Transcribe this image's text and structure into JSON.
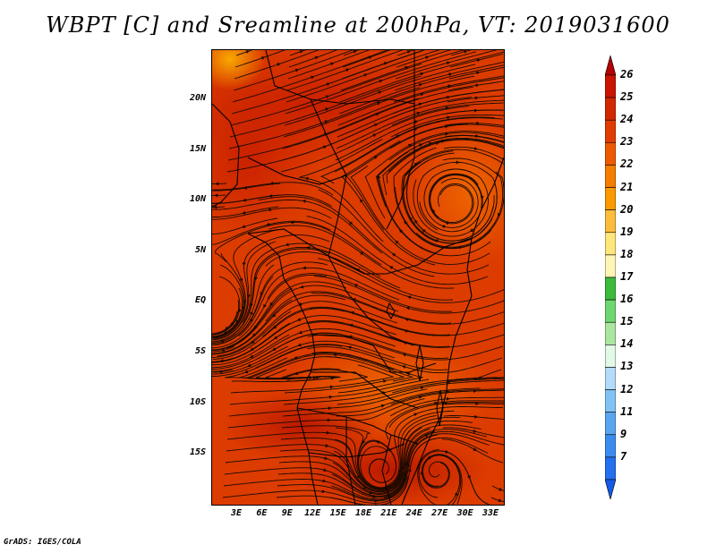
{
  "title": "WBPT [C] and Sreamline at 200hPa, VT: 2019031600",
  "credit": "GrADS: IGES/COLA",
  "map": {
    "lat_labels": [
      "20N",
      "15N",
      "10N",
      "5N",
      "EQ",
      "5S",
      "10S",
      "15S"
    ],
    "lon_labels": [
      "3E",
      "6E",
      "9E",
      "12E",
      "15E",
      "18E",
      "21E",
      "24E",
      "27E",
      "30E",
      "33E"
    ],
    "field": "wet-bulb potential temperature",
    "level": "200hPa"
  },
  "colorbar": {
    "labels": [
      "26",
      "25",
      "24",
      "23",
      "22",
      "21",
      "20",
      "19",
      "18",
      "17",
      "16",
      "15",
      "14",
      "13",
      "12",
      "11",
      "9",
      "7"
    ],
    "colors": [
      "#b40000",
      "#c81400",
      "#d22800",
      "#e13c00",
      "#ee5a00",
      "#f57d00",
      "#fa9a00",
      "#fcbd3c",
      "#fee67a",
      "#fff5b4",
      "#3cba3c",
      "#6fd76f",
      "#aae6a0",
      "#e1fae6",
      "#b4dcfa",
      "#82c3f5",
      "#5aa5f0",
      "#3c8cf0",
      "#2370f0",
      "#145ae6"
    ]
  }
}
